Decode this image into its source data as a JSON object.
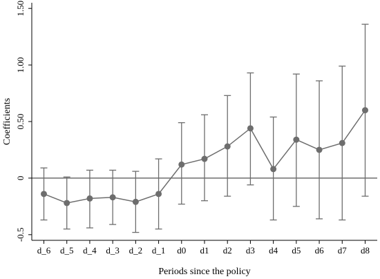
{
  "chart_data": {
    "type": "scatter",
    "title": "",
    "xlabel": "Periods since the policy",
    "ylabel": "Coefficients",
    "categories": [
      "d_6",
      "d_5",
      "d_4",
      "d_3",
      "d_2",
      "d_1",
      "d0",
      "d1",
      "d2",
      "d3",
      "d4",
      "d5",
      "d6",
      "d7",
      "d8"
    ],
    "series": [
      {
        "values": [
          -0.14,
          -0.22,
          -0.18,
          -0.17,
          -0.21,
          -0.14,
          0.12,
          0.17,
          0.28,
          0.44,
          0.08,
          0.34,
          0.25,
          0.31,
          0.6
        ],
        "ci_low": [
          -0.37,
          -0.45,
          -0.44,
          -0.41,
          -0.48,
          -0.45,
          -0.23,
          -0.2,
          -0.16,
          -0.06,
          -0.37,
          -0.25,
          -0.36,
          -0.37,
          -0.16
        ],
        "ci_high": [
          0.09,
          0.01,
          0.07,
          0.07,
          0.06,
          0.17,
          0.49,
          0.56,
          0.73,
          0.93,
          0.54,
          0.92,
          0.86,
          0.99,
          1.36
        ]
      }
    ],
    "yticks": [
      -0.5,
      0,
      0.5,
      1.0,
      1.5
    ],
    "ytick_labels": [
      "-0.5",
      "0",
      "0.50",
      "1.00",
      "1.50"
    ],
    "ylim": [
      -0.55,
      1.55
    ],
    "reference_line_y": 0,
    "grid": false,
    "colors": {
      "series": "#6d6d6d",
      "reference_line": "#6d6d6d",
      "axis": "#000000"
    }
  }
}
